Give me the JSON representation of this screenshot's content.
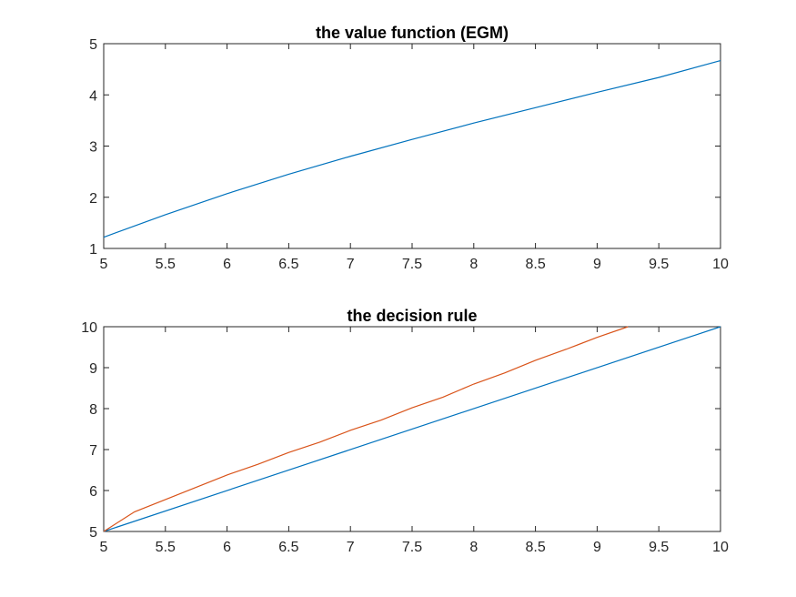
{
  "chart_data": [
    {
      "type": "line",
      "title": "the value function (EGM)",
      "xlabel": "",
      "ylabel": "",
      "xlim": [
        5,
        10
      ],
      "ylim": [
        1,
        5
      ],
      "xticks": [
        "5",
        "5.5",
        "6",
        "6.5",
        "7",
        "7.5",
        "8",
        "8.5",
        "9",
        "9.5",
        "10"
      ],
      "yticks": [
        "1",
        "2",
        "3",
        "4",
        "5"
      ],
      "grid": false,
      "series": [
        {
          "color": "#0072BD",
          "x": [
            5,
            5.5,
            6,
            6.5,
            7,
            7.5,
            8,
            8.5,
            9,
            9.5,
            10
          ],
          "y": [
            1.22,
            1.66,
            2.07,
            2.45,
            2.8,
            3.13,
            3.45,
            3.75,
            4.05,
            4.34,
            4.67
          ]
        }
      ]
    },
    {
      "type": "line",
      "title": "the decision rule",
      "xlabel": "",
      "ylabel": "",
      "xlim": [
        5,
        10
      ],
      "ylim": [
        5,
        10
      ],
      "xticks": [
        "5",
        "5.5",
        "6",
        "6.5",
        "7",
        "7.5",
        "8",
        "8.5",
        "9",
        "9.5",
        "10"
      ],
      "yticks": [
        "5",
        "6",
        "7",
        "8",
        "9",
        "10"
      ],
      "grid": false,
      "series": [
        {
          "color": "#0072BD",
          "x": [
            5,
            10
          ],
          "y": [
            5,
            10
          ]
        },
        {
          "color": "#D95319",
          "x": [
            5,
            5.25,
            5.5,
            5.75,
            6,
            6.25,
            6.5,
            6.75,
            7,
            7.25,
            7.5,
            7.75,
            8,
            8.25,
            8.5,
            8.75,
            9,
            9.25
          ],
          "y": [
            5.0,
            5.48,
            5.78,
            6.08,
            6.38,
            6.64,
            6.93,
            7.18,
            7.47,
            7.72,
            8.02,
            8.28,
            8.6,
            8.87,
            9.18,
            9.45,
            9.74,
            10.0
          ]
        }
      ]
    }
  ]
}
